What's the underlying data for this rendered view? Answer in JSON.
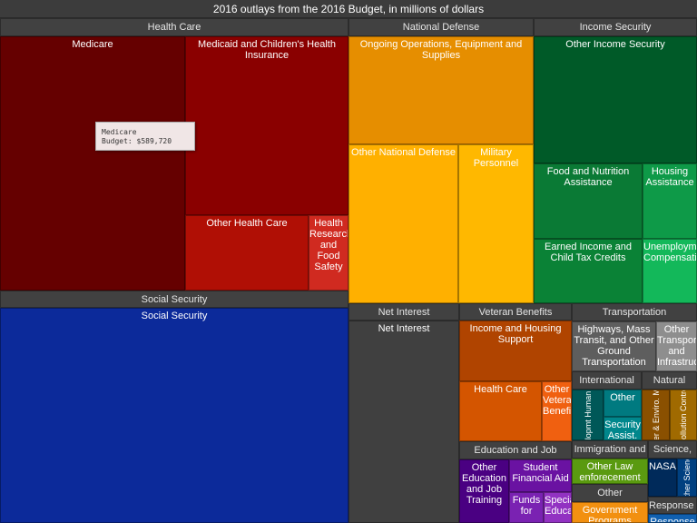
{
  "chart_data": {
    "type": "treemap",
    "title": "2016 outlays from the 2016 Budget, in millions of dollars",
    "groups": [
      {
        "name": "Health Care",
        "children": [
          {
            "label": "Medicare",
            "color": "#650000",
            "value": 589720
          },
          {
            "label": "Medicaid and Children's Health Insurance",
            "color": "#8a0000"
          },
          {
            "label": "Other Health Care",
            "color": "#b00f05"
          },
          {
            "label": "Health Research and Food Safety",
            "color": "#d02a20"
          }
        ]
      },
      {
        "name": "Social Security",
        "children": [
          {
            "label": "Social Security",
            "color": "#0c2a9a"
          }
        ]
      },
      {
        "name": "National Defense",
        "children": [
          {
            "label": "Ongoing Operations, Equipment and Supplies",
            "color": "#e68e00"
          },
          {
            "label": "Other National Defense",
            "color": "#ffb000"
          },
          {
            "label": "Military Personnel",
            "color": "#ffb800"
          }
        ]
      },
      {
        "name": "Income Security",
        "children": [
          {
            "label": "Other Income Security",
            "color": "#005a28"
          },
          {
            "label": "Food and Nutrition Assistance",
            "color": "#0a7a35"
          },
          {
            "label": "Housing Assistance",
            "color": "#0e9a48"
          },
          {
            "label": "Earned Income and Child Tax Credits",
            "color": "#0a8236"
          },
          {
            "label": "Unemployment Compensation",
            "color": "#13b85a"
          }
        ]
      },
      {
        "name": "Net Interest",
        "children": [
          {
            "label": "Net Interest",
            "color": "#404040"
          }
        ]
      },
      {
        "name": "Veteran Benefits",
        "children": [
          {
            "label": "Income and Housing Support",
            "color": "#b04400"
          },
          {
            "label": "Health Care",
            "color": "#d45500"
          },
          {
            "label": "Other Veteran Benefits",
            "color": "#f06010"
          }
        ]
      },
      {
        "name": "Education and Job",
        "children": [
          {
            "label": "Other Education and Job Training",
            "color": "#4a0082"
          },
          {
            "label": "Student Financial Aid",
            "color": "#6a12a2"
          },
          {
            "label": "Funds for",
            "color": "#7a22b2"
          },
          {
            "label": "Special Education",
            "color": "#9232c2"
          }
        ]
      },
      {
        "name": "Transportation",
        "children": [
          {
            "label": "Highways, Mass Transit, and Other Ground Transportation",
            "color": "#5e5e5e"
          },
          {
            "label": "Other Transport and Infrastruc",
            "color": "#8e8e8e"
          }
        ]
      },
      {
        "name": "International",
        "children": [
          {
            "label": "Developmt Human. Asst",
            "color": "#005858"
          },
          {
            "label": "Other",
            "color": "#007a80"
          },
          {
            "label": "Security Assist.",
            "color": "#00878c"
          }
        ]
      },
      {
        "name": "Natural",
        "children": [
          {
            "label": "Water & Enviro. Mgmt",
            "color": "#8a5000"
          },
          {
            "label": "Pollution Control",
            "color": "#a06a00"
          }
        ]
      },
      {
        "name": "Immigration and",
        "children": [
          {
            "label": "Other Law enforecement",
            "color": "#5a9a10"
          }
        ]
      },
      {
        "name": "Other",
        "children": [
          {
            "label": "Government Programs",
            "color": "#f29010"
          }
        ]
      },
      {
        "name": "Science,",
        "children": [
          {
            "label": "NASA",
            "color": "#002a5a"
          },
          {
            "label": "Other Science",
            "color": "#004080"
          }
        ]
      },
      {
        "name": "Response to Natural",
        "children": [
          {
            "label": "Response",
            "color": "#1060b0"
          }
        ]
      }
    ],
    "tooltip": {
      "name": "Medicare",
      "budget": "Budget: $589,720"
    }
  }
}
